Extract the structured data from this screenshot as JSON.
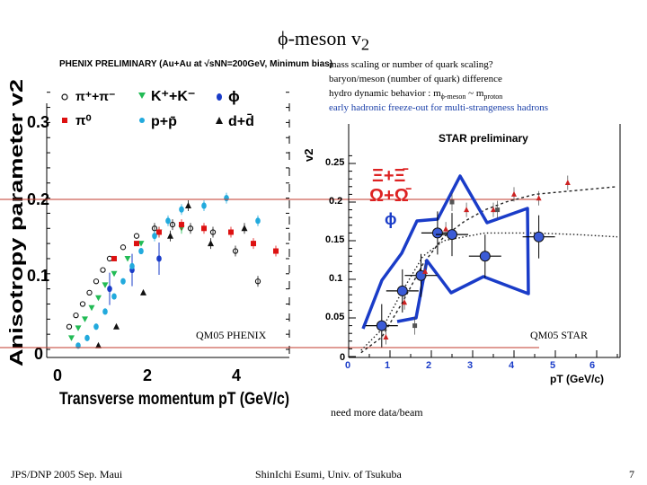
{
  "slide": {
    "title": "ϕ-meson v",
    "title_sub": "2",
    "notes": [
      {
        "text": "mass scaling or number of quark scaling?"
      },
      {
        "text": "baryon/meson (number of quark) difference"
      },
      {
        "text": "hydro dynamic behavior : m",
        "sub1": "ϕ-meson",
        "mid": " ~ m",
        "sub2": "proton"
      },
      {
        "text": "early hadronic freeze-out for multi-strangeness hadrons"
      }
    ],
    "label_left": "QM05 PHENIX",
    "label_right": "QM05 STAR",
    "need_more": "need more data/beam",
    "footer_left": "JPS/DNP 2005 Sep. Maui",
    "footer_center": "ShinIchi Esumi, Univ. of Tsukuba",
    "page_number": "7",
    "colors": {
      "blue_curve": "#1a3cc8",
      "red_line": "#c0392b",
      "note_blue": "#1a3fa8"
    }
  },
  "chart_data": [
    {
      "type": "scatter",
      "title": "PHENIX PRELIMINARY (Au+Au at √sNN=200GeV, Minimum bias)",
      "xlabel": "Transverse momentum pT (GeV/c)",
      "ylabel": "Anisotropy parameter v2",
      "xlim": [
        0,
        5.8
      ],
      "ylim": [
        -0.02,
        0.36
      ],
      "xticks": [
        "0",
        "2",
        "4"
      ],
      "yticks": [
        "0",
        "0.1",
        "0.2",
        "0.3"
      ],
      "legend": [
        {
          "label": "π⁺+π⁻",
          "color": "#111111",
          "marker": "open-circle"
        },
        {
          "label": "K⁺+K⁻",
          "color": "#22bb55",
          "marker": "triangle-down"
        },
        {
          "label": "ϕ",
          "color": "#1a3cc8",
          "marker": "circle"
        },
        {
          "label": "π⁰",
          "color": "#dd1111",
          "marker": "square"
        },
        {
          "label": "p+p̄",
          "color": "#22aadd",
          "marker": "circle"
        },
        {
          "label": "d+d̄",
          "color": "#111111",
          "marker": "triangle-up"
        }
      ],
      "series": [
        {
          "name": "π⁺+π⁻",
          "x": [
            0.3,
            0.45,
            0.6,
            0.75,
            0.9,
            1.05,
            1.2,
            1.5,
            1.8,
            2.2,
            2.6,
            3.0,
            3.5,
            4.0,
            4.5
          ],
          "y": [
            0.03,
            0.045,
            0.06,
            0.075,
            0.09,
            0.105,
            0.12,
            0.135,
            0.15,
            0.16,
            0.165,
            0.16,
            0.155,
            0.13,
            0.09
          ]
        },
        {
          "name": "K⁺+K⁻",
          "x": [
            0.35,
            0.5,
            0.65,
            0.8,
            0.95,
            1.1,
            1.3,
            1.6,
            1.9,
            2.3,
            2.8
          ],
          "y": [
            0.015,
            0.028,
            0.04,
            0.055,
            0.068,
            0.085,
            0.1,
            0.12,
            0.14,
            0.155,
            0.16
          ]
        },
        {
          "name": "ϕ",
          "x": [
            1.2,
            1.7,
            2.3
          ],
          "y": [
            0.08,
            0.105,
            0.12
          ]
        },
        {
          "name": "π⁰",
          "x": [
            1.3,
            1.8,
            2.3,
            2.8,
            3.3,
            3.9,
            4.4,
            4.9
          ],
          "y": [
            0.12,
            0.14,
            0.155,
            0.165,
            0.16,
            0.155,
            0.14,
            0.13
          ]
        },
        {
          "name": "p+p̄",
          "x": [
            0.5,
            0.7,
            0.9,
            1.1,
            1.3,
            1.5,
            1.7,
            1.9,
            2.2,
            2.5,
            2.8,
            3.3,
            3.8,
            4.5
          ],
          "y": [
            0.005,
            0.015,
            0.03,
            0.05,
            0.07,
            0.09,
            0.11,
            0.13,
            0.15,
            0.17,
            0.185,
            0.19,
            0.2,
            0.17
          ]
        },
        {
          "name": "d+d̄",
          "x": [
            0.95,
            1.35,
            1.95,
            2.55,
            2.95,
            3.45,
            4.2
          ],
          "y": [
            0.005,
            0.03,
            0.075,
            0.15,
            0.19,
            0.14,
            0.16
          ]
        }
      ]
    },
    {
      "type": "scatter",
      "title": "STAR preliminary",
      "xlabel": "pT (GeV/c)",
      "ylabel": "v2",
      "xlim": [
        0,
        6.5
      ],
      "ylim": [
        0,
        0.28
      ],
      "xticks": [
        "0",
        "1",
        "2",
        "3",
        "4",
        "5",
        "6"
      ],
      "yticks": [
        "0",
        "0.05",
        "0.1",
        "0.15",
        "0.2",
        "0.25"
      ],
      "annotations": [
        "Ξ+Ξ̄",
        "Ω+Ω̄",
        "ϕ"
      ],
      "series": [
        {
          "name": "ϕ",
          "x": [
            0.8,
            1.3,
            1.75,
            2.15,
            2.5,
            3.3,
            4.6
          ],
          "y": [
            0.04,
            0.085,
            0.105,
            0.16,
            0.158,
            0.13,
            0.155
          ]
        },
        {
          "name": "Ξ+Ξ̄",
          "x": [
            0.9,
            1.35,
            1.85,
            2.35,
            2.85,
            3.5,
            4.0,
            4.6,
            5.3
          ],
          "y": [
            0.025,
            0.07,
            0.11,
            0.165,
            0.19,
            0.19,
            0.21,
            0.205,
            0.225
          ]
        },
        {
          "name": "Ω+Ω̄",
          "x": [
            1.6,
            2.5,
            3.6
          ],
          "y": [
            0.04,
            0.2,
            0.19
          ]
        }
      ],
      "curves": [
        {
          "x": [
            0.3,
            0.8,
            1.3,
            1.8,
            2.3,
            2.8,
            3.3,
            3.8,
            4.5,
            5.5,
            6.5
          ],
          "y": [
            0.005,
            0.025,
            0.07,
            0.12,
            0.155,
            0.175,
            0.19,
            0.2,
            0.21,
            0.215,
            0.22
          ]
        },
        {
          "x": [
            0.3,
            0.8,
            1.3,
            1.8,
            2.3,
            2.8,
            3.3,
            3.8,
            4.5,
            5.5,
            6.5
          ],
          "y": [
            0.008,
            0.035,
            0.085,
            0.13,
            0.15,
            0.155,
            0.16,
            0.16,
            0.16,
            0.158,
            0.155
          ]
        }
      ]
    }
  ]
}
